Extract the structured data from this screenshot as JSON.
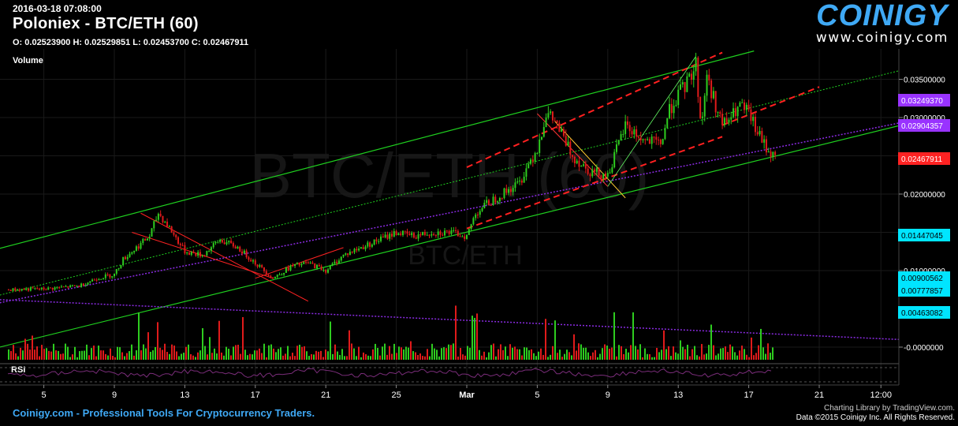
{
  "header": {
    "timestamp": "2016-03-18 07:08:00",
    "title": "Poloniex - BTC/ETH (60)",
    "ohlc": "O: 0.02523900 H: 0.02529851 L: 0.02453700 C: 0.02467911",
    "volume_label": "Volume",
    "watermark_main": "BTC/ETH (60)",
    "watermark_sub": "BTC/ETH"
  },
  "logo": {
    "brand": "COINIGY",
    "url": "www.coinigy.com"
  },
  "footer": {
    "tagline": "Coinigy.com - Professional Tools For Cryptocurrency Traders.",
    "credit_line1": "Charting Library by TradingView.com.",
    "credit_line2": "Data ©2015 Coinigy Inc. All Rights Reserved."
  },
  "colors": {
    "up": "#2ecc1f",
    "down": "#e01b1b",
    "channel_green": "#1fd01f",
    "red_dash": "#ff2020",
    "purple": "#8a2be2",
    "axis_text": "#ffffff",
    "grid": "#1a1a1a"
  },
  "chart_data": {
    "type": "candlestick",
    "pair": "BTC/ETH",
    "interval": "60",
    "x_axis": {
      "ticks": [
        "5",
        "9",
        "13",
        "17",
        "21",
        "25",
        "Mar",
        "5",
        "9",
        "13",
        "17",
        "21",
        "12:00"
      ],
      "tick_days": [
        -24,
        -20,
        -16,
        -12,
        -8,
        -4,
        0,
        4,
        8,
        12,
        16,
        20,
        23.5
      ]
    },
    "y_axis": {
      "ticks": [
        "0.03500000",
        "0.03000000",
        "0.02500000",
        "0.02000000",
        "0.01500000",
        "0.01000000",
        "-0.0000000"
      ],
      "tick_values": [
        0.035,
        0.03,
        0.025,
        0.02,
        0.015,
        0.01,
        0.0
      ]
    },
    "price_labels": [
      {
        "value": "0.03249370",
        "color": "#9933ff"
      },
      {
        "value": "0.02904357",
        "color": "#9933ff"
      },
      {
        "value": "0.02467911",
        "color": "#ff2222"
      },
      {
        "value": "0.01447045",
        "color": "#00e5ff"
      },
      {
        "value": "0.00900562",
        "color": "#00e5ff"
      },
      {
        "value": "0.00777857",
        "color": "#00e5ff"
      },
      {
        "value": "0.00463082",
        "color": "#00e5ff"
      }
    ],
    "price_path": [
      {
        "day": -26,
        "price": 0.0075
      },
      {
        "day": -24,
        "price": 0.0076
      },
      {
        "day": -22,
        "price": 0.008
      },
      {
        "day": -21,
        "price": 0.009
      },
      {
        "day": -20,
        "price": 0.0095
      },
      {
        "day": -19.5,
        "price": 0.0115
      },
      {
        "day": -19,
        "price": 0.0125
      },
      {
        "day": -18,
        "price": 0.0145
      },
      {
        "day": -17.5,
        "price": 0.0175
      },
      {
        "day": -17,
        "price": 0.016
      },
      {
        "day": -16,
        "price": 0.0125
      },
      {
        "day": -15,
        "price": 0.012
      },
      {
        "day": -14,
        "price": 0.014
      },
      {
        "day": -13,
        "price": 0.013
      },
      {
        "day": -12,
        "price": 0.011
      },
      {
        "day": -11,
        "price": 0.009
      },
      {
        "day": -10,
        "price": 0.0105
      },
      {
        "day": -9,
        "price": 0.011
      },
      {
        "day": -8,
        "price": 0.01
      },
      {
        "day": -7,
        "price": 0.012
      },
      {
        "day": -6,
        "price": 0.013
      },
      {
        "day": -5,
        "price": 0.014
      },
      {
        "day": -4,
        "price": 0.015
      },
      {
        "day": -3,
        "price": 0.0145
      },
      {
        "day": -2,
        "price": 0.015
      },
      {
        "day": -1,
        "price": 0.015
      },
      {
        "day": 0,
        "price": 0.0145
      },
      {
        "day": 0.5,
        "price": 0.0175
      },
      {
        "day": 1,
        "price": 0.0185
      },
      {
        "day": 2,
        "price": 0.02
      },
      {
        "day": 3,
        "price": 0.0215
      },
      {
        "day": 3.5,
        "price": 0.024
      },
      {
        "day": 4,
        "price": 0.026
      },
      {
        "day": 4.5,
        "price": 0.0305
      },
      {
        "day": 5,
        "price": 0.0295
      },
      {
        "day": 6,
        "price": 0.025
      },
      {
        "day": 7,
        "price": 0.023
      },
      {
        "day": 8,
        "price": 0.0225
      },
      {
        "day": 9,
        "price": 0.029
      },
      {
        "day": 10,
        "price": 0.027
      },
      {
        "day": 11,
        "price": 0.0265
      },
      {
        "day": 11.5,
        "price": 0.031
      },
      {
        "day": 12,
        "price": 0.033
      },
      {
        "day": 12.5,
        "price": 0.0345
      },
      {
        "day": 13,
        "price": 0.037
      },
      {
        "day": 13.3,
        "price": 0.0285
      },
      {
        "day": 13.6,
        "price": 0.0355
      },
      {
        "day": 14,
        "price": 0.0325
      },
      {
        "day": 14.5,
        "price": 0.029
      },
      {
        "day": 15,
        "price": 0.03
      },
      {
        "day": 15.5,
        "price": 0.0315
      },
      {
        "day": 16,
        "price": 0.0305
      },
      {
        "day": 16.5,
        "price": 0.028
      },
      {
        "day": 17,
        "price": 0.026
      },
      {
        "day": 17.5,
        "price": 0.0247
      }
    ],
    "rsi_label": "RSI"
  }
}
